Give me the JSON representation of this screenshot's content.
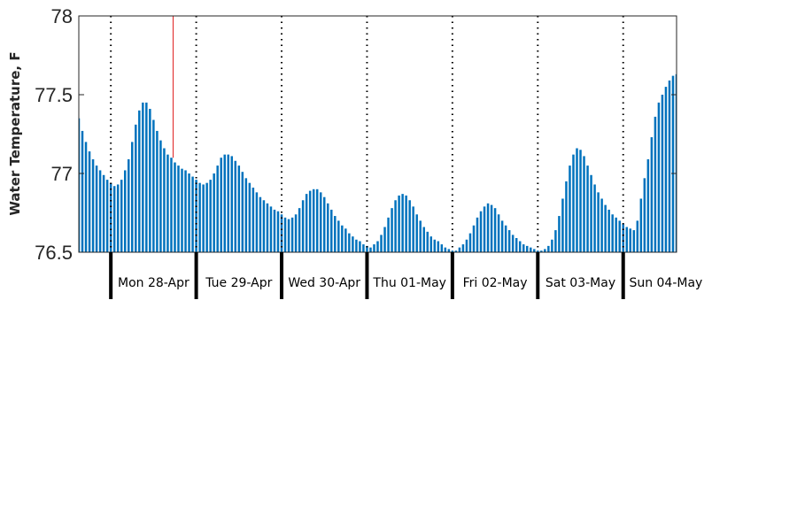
{
  "chart_data": {
    "type": "bar",
    "title": "",
    "xlabel": "",
    "ylabel": "Water Temperature, F",
    "ylim": [
      76.5,
      78
    ],
    "yticks": [
      {
        "value": 76.5,
        "label": "76.5"
      },
      {
        "value": 77,
        "label": "77"
      },
      {
        "value": 77.5,
        "label": "77.5"
      },
      {
        "value": 78,
        "label": "78"
      }
    ],
    "x_unit": "hours",
    "xlim": [
      -9,
      159
    ],
    "bar_interval_hours": 1,
    "day_labels": [
      "Mon 28-Apr",
      "Tue 29-Apr",
      "Wed 30-Apr",
      "Thu 01-May",
      "Fri 02-May",
      "Sat 03-May",
      "Sun 04-May"
    ],
    "day_boundaries_hours": [
      0,
      24,
      48,
      72,
      96,
      120,
      144
    ],
    "current_time_hours": 17.5,
    "grid": "dotted vertical lines at day boundaries",
    "series": [
      {
        "color": "#0072bd",
        "values": [
          76.94,
          76.92,
          76.93,
          76.96,
          77.02,
          77.09,
          77.2,
          77.31,
          77.4,
          77.45,
          77.45,
          77.41,
          77.34,
          77.27,
          77.21,
          77.16,
          77.12,
          77.1,
          77.07,
          77.05,
          77.03,
          77.02,
          77.0,
          76.98,
          76.96,
          76.94,
          76.93,
          76.94,
          76.96,
          77.0,
          77.05,
          77.1,
          77.12,
          77.12,
          77.11,
          77.08,
          77.05,
          77.01,
          76.97,
          76.94,
          76.91,
          76.88,
          76.85,
          76.83,
          76.81,
          76.79,
          76.77,
          76.76,
          76.74,
          76.72,
          76.71,
          76.72,
          76.74,
          76.78,
          76.83,
          76.87,
          76.89,
          76.9,
          76.9,
          76.88,
          76.85,
          76.81,
          76.77,
          76.73,
          76.7,
          76.67,
          76.65,
          76.62,
          76.6,
          76.58,
          76.57,
          76.55,
          76.54,
          76.53,
          76.55,
          76.57,
          76.61,
          76.66,
          76.72,
          76.78,
          76.83,
          76.86,
          76.87,
          76.86,
          76.83,
          76.79,
          76.74,
          76.7,
          76.66,
          76.63,
          76.6,
          76.58,
          76.57,
          76.55,
          76.53,
          76.52,
          76.51,
          76.51,
          76.53,
          76.55,
          76.58,
          76.62,
          76.67,
          76.72,
          76.76,
          76.79,
          76.81,
          76.8,
          76.78,
          76.74,
          76.7,
          76.67,
          76.64,
          76.61,
          76.59,
          76.57,
          76.55,
          76.54,
          76.53,
          76.52,
          76.51,
          76.51,
          76.52,
          76.54,
          76.58,
          76.64,
          76.73,
          76.84,
          76.95,
          77.05,
          77.12,
          77.16,
          77.15,
          77.11,
          77.05,
          76.99,
          76.93,
          76.88,
          76.84,
          76.8,
          76.77,
          76.74,
          76.72,
          76.7,
          76.68,
          76.66,
          76.65,
          76.64,
          76.7,
          76.84,
          76.97,
          77.09,
          77.23,
          77.36,
          77.45,
          77.5,
          77.55,
          77.59,
          77.62,
          77.63,
          77.57
        ],
        "values_before_first_boundary": [
          77.35,
          77.27,
          77.2,
          77.14,
          77.09,
          77.05,
          77.02,
          76.99,
          76.96
        ]
      }
    ]
  }
}
